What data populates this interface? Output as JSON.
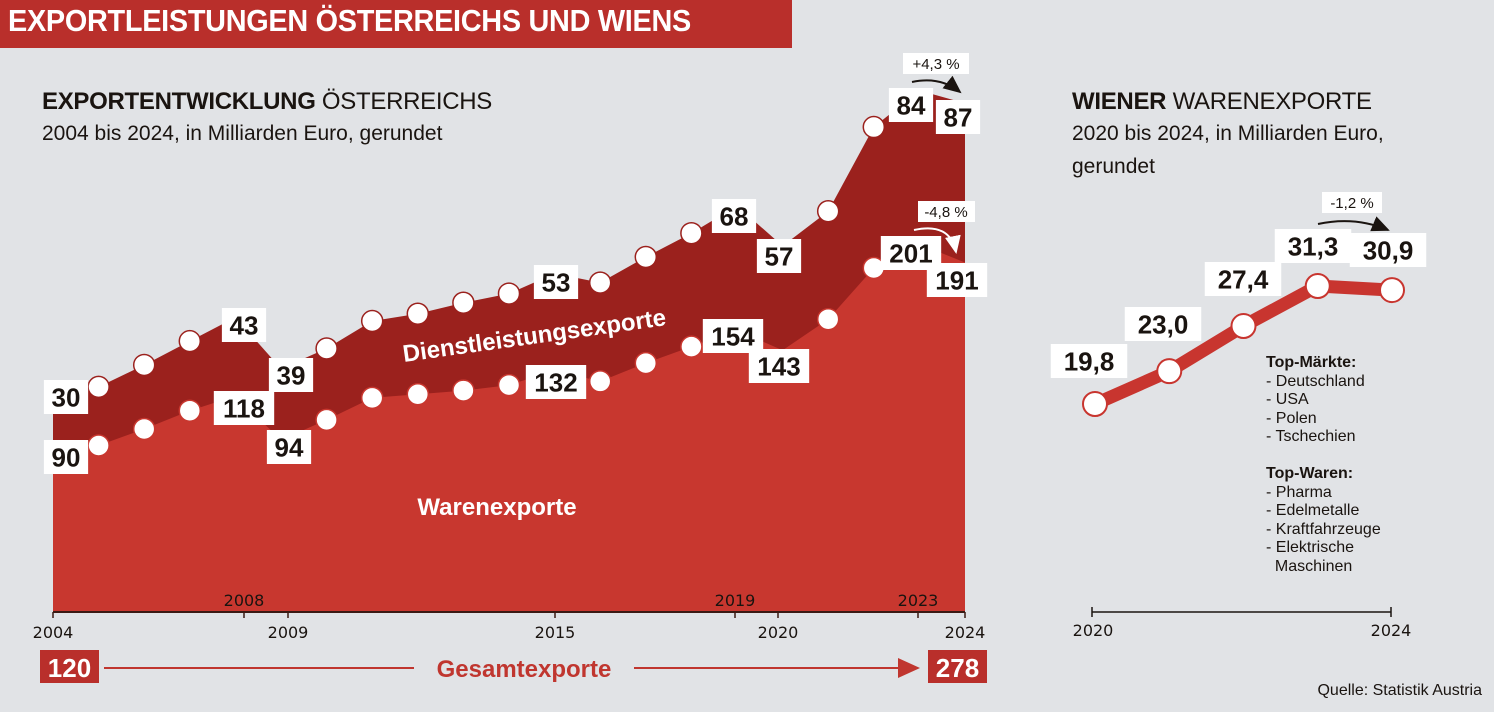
{
  "banner": {
    "title": "EXPORTLEISTUNGEN ÖSTERREICHS UND WIENS"
  },
  "austria": {
    "title_bold": "EXPORTENTWICKLUNG",
    "title_rest": " ÖSTERREICHS",
    "subtitle": "2004 bis 2024, in Milliarden Euro, gerundet",
    "band_label_services": "Dienstleistungsexporte",
    "band_label_goods": "Warenexporte",
    "total_label": "Gesamtexporte",
    "total_start": "120",
    "total_end": "278",
    "change_services": "+4,3 %",
    "change_goods": "-4,8 %"
  },
  "vienna": {
    "title_bold": "WIENER",
    "title_rest": " WARENEXPORTE",
    "subtitle_line1": "2020 bis 2024, in Milliarden Euro,",
    "subtitle_line2": "gerundet",
    "change": "-1,2 %",
    "top_markets_title": "Top-Märkte:",
    "top_markets": [
      "- Deutschland",
      "- USA",
      "- Polen",
      "- Tschechien"
    ],
    "top_goods_title": "Top-Waren:",
    "top_goods": [
      "- Pharma",
      "- Edelmetalle",
      "- Kraftfahrzeuge",
      "- Elektrische",
      "  Maschinen"
    ]
  },
  "source": "Quelle: Statistik Austria",
  "colors": {
    "background": "#e1e3e6",
    "banner": "#b92f2b",
    "goods": "#c8372f",
    "services": "#9b211d",
    "total_text": "#c0362f",
    "vienna_line": "#c8352f"
  },
  "chart_data": [
    {
      "type": "area",
      "stacked": true,
      "title": "EXPORTENTWICKLUNG ÖSTERREICHS",
      "subtitle": "2004 bis 2024, in Milliarden Euro, gerundet",
      "xlabel": "",
      "ylabel": "Milliarden Euro",
      "x": [
        2004,
        2005,
        2006,
        2007,
        2008,
        2009,
        2010,
        2011,
        2012,
        2013,
        2014,
        2015,
        2016,
        2017,
        2018,
        2019,
        2020,
        2021,
        2022,
        2023,
        2024
      ],
      "x_ticks_below": [
        "2004",
        "2009",
        "2015",
        "2020",
        "2024"
      ],
      "x_ticks_above": [
        "2008",
        "2019",
        "2023"
      ],
      "ylim": [
        0,
        290
      ],
      "grid": false,
      "series": [
        {
          "name": "Warenexporte",
          "values": [
            90,
            91,
            100,
            110,
            118,
            94,
            105,
            117,
            119,
            121,
            124,
            132,
            126,
            136,
            145,
            154,
            143,
            160,
            188,
            201,
            191
          ],
          "labeled": {
            "2004": "90",
            "2008": "118",
            "2009": "94",
            "2015": "132",
            "2019": "154",
            "2020": "143",
            "2023": "201",
            "2024": "191"
          }
        },
        {
          "name": "Dienstleistungsexporte",
          "values": [
            30,
            32,
            35,
            38,
            43,
            39,
            39,
            42,
            44,
            48,
            50,
            53,
            54,
            58,
            62,
            68,
            57,
            59,
            77,
            84,
            87
          ],
          "labeled": {
            "2004": "30",
            "2008": "43",
            "2009": "39",
            "2015": "53",
            "2019": "68",
            "2020": "57",
            "2023": "84",
            "2024": "87"
          }
        }
      ],
      "totals": {
        "2004": 120,
        "2024": 278
      },
      "annotations": [
        {
          "text": "+4,3 %",
          "from": 2023,
          "to": 2024,
          "series": "Dienstleistungsexporte"
        },
        {
          "text": "-4,8 %",
          "from": 2023,
          "to": 2024,
          "series": "Warenexporte"
        }
      ],
      "legend": "inline"
    },
    {
      "type": "line",
      "title": "WIENER WARENEXPORTE",
      "subtitle": "2020 bis 2024, in Milliarden Euro, gerundet",
      "x": [
        2020,
        2021,
        2022,
        2023,
        2024
      ],
      "x_ticks": [
        "2020",
        "2024"
      ],
      "values": [
        19.8,
        23.0,
        27.4,
        31.3,
        30.9
      ],
      "labels": [
        "19,8",
        "23,0",
        "27,4",
        "31,3",
        "30,9"
      ],
      "ylim": [
        15,
        34
      ],
      "annotations": [
        {
          "text": "-1,2 %",
          "from": 2023,
          "to": 2024
        }
      ],
      "grid": false
    }
  ]
}
